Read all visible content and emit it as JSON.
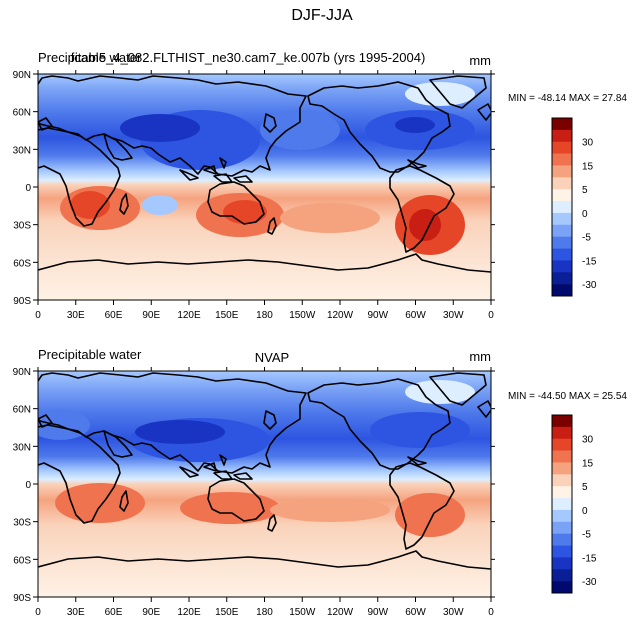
{
  "figure_title": "DJF-JJA",
  "colorbar_labels": [
    "30",
    "15",
    "5",
    "0",
    "-5",
    "-15",
    "-30"
  ],
  "colorbar_colors": [
    "#7a0000",
    "#c81e14",
    "#e64628",
    "#f0734f",
    "#f5a37f",
    "#fad2ba",
    "#fff2e6",
    "#dceeff",
    "#a5c8ff",
    "#7aa2f5",
    "#4f7aeb",
    "#2d55e1",
    "#1934c3",
    "#0a1e96",
    "#000a6e"
  ],
  "chart_data": [
    {
      "type": "heatmap",
      "title": "fcam5_4_082.FLTHIST_ne30.cam7_ke.007b (yrs 1995-2004)",
      "left_title": "Precipitable water",
      "units": "mm",
      "stats_text": "MIN = -48.14 MAX =  27.84",
      "min": -48.14,
      "max": 27.84,
      "xticks": [
        "0",
        "30E",
        "60E",
        "90E",
        "120E",
        "150E",
        "180",
        "150W",
        "120W",
        "90W",
        "60W",
        "30W",
        "0"
      ],
      "yticks": [
        "90N",
        "60N",
        "30N",
        "0",
        "30S",
        "60S",
        "90S"
      ],
      "xlim": [
        0,
        360
      ],
      "ylim": [
        -90,
        90
      ]
    },
    {
      "type": "heatmap",
      "title": "NVAP",
      "left_title": "Precipitable water",
      "units": "mm",
      "stats_text": "MIN = -44.50 MAX =  25.54",
      "min": -44.5,
      "max": 25.54,
      "xticks": [
        "0",
        "30E",
        "60E",
        "90E",
        "120E",
        "150E",
        "180",
        "150W",
        "120W",
        "90W",
        "60W",
        "30W",
        "0"
      ],
      "yticks": [
        "90N",
        "60N",
        "30N",
        "0",
        "30S",
        "60S",
        "90S"
      ],
      "xlim": [
        0,
        360
      ],
      "ylim": [
        -90,
        90
      ]
    }
  ]
}
